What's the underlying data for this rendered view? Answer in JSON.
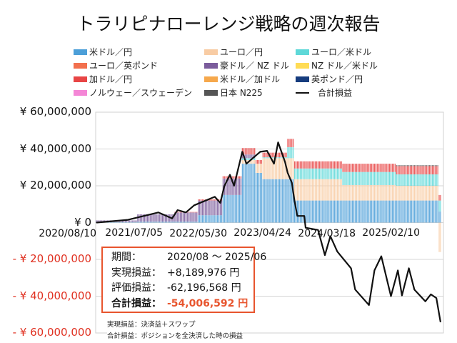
{
  "chart_data": {
    "type": "bar",
    "title": "トラリピナローレンジ戦略の週次報告",
    "stacked": true,
    "ylim": [
      -60000000,
      60000000
    ],
    "y_ticks": [
      {
        "value": 60000000,
        "label": "¥ 60,000,000"
      },
      {
        "value": 40000000,
        "label": "¥ 40,000,000"
      },
      {
        "value": 20000000,
        "label": "¥ 20,000,000"
      },
      {
        "value": 0,
        "label": "¥ 0"
      },
      {
        "value": -20000000,
        "label": "- ¥ 20,000,000"
      },
      {
        "value": -40000000,
        "label": "- ¥ 40,000,000"
      },
      {
        "value": -60000000,
        "label": "- ¥ 60,000,000"
      }
    ],
    "x_ticks": [
      "2020/08/10",
      "2021/07/05",
      "2022/05/30",
      "2023/04/24",
      "2024/03/18",
      "2025/02/10"
    ],
    "grid": true,
    "legend_position": "top",
    "series": [
      {
        "key": "usdjpy",
        "name": "米ドル／円",
        "color": "#4c9fd8"
      },
      {
        "key": "eurjpy",
        "name": "ユーロ／円",
        "color": "#f8ccA4"
      },
      {
        "key": "eurusd",
        "name": "ユーロ／米ドル",
        "color": "#5ed8d8"
      },
      {
        "key": "eurgbp",
        "name": "ユーロ／英ポンド",
        "color": "#f2704e"
      },
      {
        "key": "audnzd",
        "name": "豪ドル／ NZ ドル",
        "color": "#7b5c9c"
      },
      {
        "key": "nzdusd",
        "name": "NZ ドル／米ドル",
        "color": "#ffdc55"
      },
      {
        "key": "cadjpy",
        "name": "加ドル／円",
        "color": "#e84545"
      },
      {
        "key": "usdcad",
        "name": "米ドル／加ドル",
        "color": "#f6a84c"
      },
      {
        "key": "gbpjpy",
        "name": "英ポンド／円",
        "color": "#163c7e"
      },
      {
        "key": "noksek",
        "name": "ノルウェー／スウェーデン",
        "color": "#f486d6"
      },
      {
        "key": "n225",
        "name": "日本 N225",
        "color": "#555555"
      }
    ],
    "line_series": {
      "name": "合計損益",
      "color": "#111111"
    },
    "bar_periods": [
      {
        "from": "2020-08-10",
        "to": "2021-03-01",
        "values": {
          "usdjpy": 300000,
          "audnzd": 900000
        }
      },
      {
        "from": "2021-03-08",
        "to": "2021-09-06",
        "values": {
          "usdjpy": 500000,
          "audnzd": 4000000
        }
      },
      {
        "from": "2021-09-13",
        "to": "2022-01-03",
        "values": {
          "usdjpy": 500000,
          "audnzd": 5000000,
          "cadjpy": 300000
        }
      },
      {
        "from": "2022-01-10",
        "to": "2022-05-09",
        "values": {
          "usdjpy": 4000000,
          "audnzd": 8000000,
          "cadjpy": 600000
        }
      },
      {
        "from": "2022-05-16",
        "to": "2022-08-15",
        "values": {
          "usdjpy": 15000000,
          "audnzd": 9000000,
          "cadjpy": 1200000
        }
      },
      {
        "from": "2022-08-22",
        "to": "2022-10-24",
        "values": {
          "usdjpy": 32000000,
          "eurjpy": 2000000,
          "eurusd": 1000000,
          "audnzd": 2000000,
          "cadjpy": 3500000
        }
      },
      {
        "from": "2022-10-31",
        "to": "2022-11-28",
        "values": {
          "usdjpy": 27000000,
          "eurjpy": 5000000,
          "cadjpy": 2000000
        }
      },
      {
        "from": "2022-12-05",
        "to": "2023-04-03",
        "values": {
          "usdjpy": 23600000,
          "eurjpy": 11400000,
          "eurusd": 500000,
          "cadjpy": 2500000
        }
      },
      {
        "from": "2023-04-10",
        "to": "2023-05-08",
        "values": {
          "usdjpy": 23600000,
          "eurjpy": 11400000,
          "eurusd": 6000000,
          "cadjpy": 4500000
        }
      },
      {
        "from": "2023-05-15",
        "to": "2024-01-08",
        "values": {
          "usdjpy": 12000000,
          "eurjpy": 11600000,
          "eurusd": 5800000,
          "cadjpy": 3900000
        }
      },
      {
        "from": "2024-01-15",
        "to": "2024-10-07",
        "values": {
          "usdjpy": 12000000,
          "eurjpy": 8400000,
          "eurusd": 7100000,
          "cadjpy": 4500000
        }
      },
      {
        "from": "2024-10-14",
        "to": "2025-05-12",
        "values": {
          "usdjpy": 12000000,
          "eurjpy": 8000000,
          "eurusd": 6200000,
          "cadjpy": 4500000,
          "n225": 500000
        }
      },
      {
        "from": "2025-05-19",
        "to": "2025-05-26",
        "values": {
          "usdjpy": 6000000,
          "eurusd": 6000000,
          "cadjpy": 3000000,
          "eurjpy": -16000000
        }
      }
    ],
    "line": [
      [
        "2020-08-10",
        0
      ],
      [
        "2021-01-18",
        1500000
      ],
      [
        "2021-06-21",
        5500000
      ],
      [
        "2021-08-30",
        2300000
      ],
      [
        "2021-09-27",
        6800000
      ],
      [
        "2021-11-08",
        5500000
      ],
      [
        "2021-12-20",
        9400000
      ],
      [
        "2022-04-04",
        14000000
      ],
      [
        "2022-05-02",
        10700000
      ],
      [
        "2022-05-23",
        20000000
      ],
      [
        "2022-06-20",
        26000000
      ],
      [
        "2022-07-11",
        20000000
      ],
      [
        "2022-08-22",
        38500000
      ],
      [
        "2022-09-12",
        32000000
      ],
      [
        "2022-11-21",
        38500000
      ],
      [
        "2022-12-26",
        39000000
      ],
      [
        "2023-01-30",
        32000000
      ],
      [
        "2023-02-20",
        43600000
      ],
      [
        "2023-03-27",
        33000000
      ],
      [
        "2023-04-10",
        27000000
      ],
      [
        "2023-05-01",
        21700000
      ],
      [
        "2023-05-15",
        11400000
      ],
      [
        "2023-05-29",
        3600000
      ],
      [
        "2023-07-03",
        3600000
      ],
      [
        "2023-07-10",
        -2800000
      ],
      [
        "2023-09-11",
        -4000000
      ],
      [
        "2023-10-16",
        -17700000
      ],
      [
        "2023-11-13",
        -7400000
      ],
      [
        "2023-12-18",
        -15700000
      ],
      [
        "2024-02-26",
        -24800000
      ],
      [
        "2024-03-18",
        -36400000
      ],
      [
        "2024-05-27",
        -44800000
      ],
      [
        "2024-06-24",
        -26000000
      ],
      [
        "2024-07-29",
        -18300000
      ],
      [
        "2024-09-16",
        -40000000
      ],
      [
        "2024-10-21",
        -26000000
      ],
      [
        "2024-11-11",
        -39600000
      ],
      [
        "2024-12-16",
        -24800000
      ],
      [
        "2025-01-13",
        -36400000
      ],
      [
        "2025-03-10",
        -42800000
      ],
      [
        "2025-04-07",
        -39000000
      ],
      [
        "2025-05-05",
        -41000000
      ],
      [
        "2025-05-26",
        -54000000
      ]
    ]
  },
  "summary": {
    "period_label": "期間：",
    "period_value": "2020/08 ～ 2025/06",
    "realized_label": "実現損益：",
    "realized_value": "+8,189,976 円",
    "unrealized_label": "評価損益：",
    "unrealized_value": "-62,196,568 円",
    "total_label": "合計損益：",
    "total_value": "-54,006,592 円"
  },
  "notes": [
    "実現損益：決済益＋スワップ",
    "合計損益：ポジションを全決済した時の損益"
  ]
}
